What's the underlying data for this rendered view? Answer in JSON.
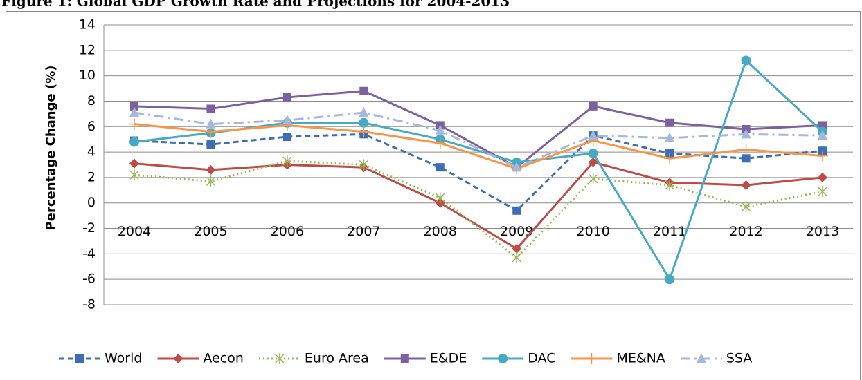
{
  "chart_data": {
    "type": "line",
    "title": "Figure 1: Global GDP Growth Rate and Projections for 2004-2013",
    "y_label": "Percentage Change (%)",
    "categories": [
      "2004",
      "2005",
      "2006",
      "2007",
      "2008",
      "2009",
      "2010",
      "2011",
      "2012",
      "2013"
    ],
    "series": [
      {
        "name": "World",
        "color": "#3d6db5",
        "dash": "dashed",
        "marker": "square",
        "values": [
          4.9,
          4.6,
          5.2,
          5.4,
          2.8,
          -0.6,
          5.3,
          3.9,
          3.5,
          4.1
        ]
      },
      {
        "name": "Aecon",
        "color": "#be4b48",
        "dash": "solid",
        "marker": "diamond",
        "values": [
          3.1,
          2.6,
          3.0,
          2.8,
          0.0,
          -3.6,
          3.2,
          1.6,
          1.4,
          2.0
        ]
      },
      {
        "name": "Euro Area",
        "color": "#98b954",
        "dash": "dotted",
        "marker": "star",
        "values": [
          2.2,
          1.7,
          3.3,
          3.0,
          0.4,
          -4.3,
          1.9,
          1.4,
          -0.3,
          0.9
        ]
      },
      {
        "name": "E&DE",
        "color": "#7d60a0",
        "dash": "solid",
        "marker": "square",
        "values": [
          7.6,
          7.4,
          8.3,
          8.8,
          6.1,
          2.8,
          7.6,
          6.3,
          5.8,
          6.1
        ]
      },
      {
        "name": "DAC",
        "color": "#46aac5",
        "dash": "solid",
        "marker": "circle",
        "values": [
          4.8,
          5.5,
          6.3,
          6.3,
          5.0,
          3.2,
          3.9,
          -6.0,
          11.2,
          5.6
        ]
      },
      {
        "name": "ME&NA",
        "color": "#f79646",
        "dash": "solid",
        "marker": "plus",
        "values": [
          6.2,
          5.6,
          6.1,
          5.6,
          4.7,
          2.7,
          4.9,
          3.5,
          4.2,
          3.7
        ]
      },
      {
        "name": "SSA",
        "color": "#a5b8dc",
        "dash": "dashdot",
        "marker": "triangle",
        "values": [
          7.1,
          6.2,
          6.5,
          7.1,
          5.7,
          2.8,
          5.3,
          5.1,
          5.4,
          5.3
        ]
      }
    ],
    "ylim": [
      -8,
      14
    ],
    "yticks": [
      -8,
      -6,
      -4,
      -2,
      0,
      2,
      4,
      6,
      8,
      10,
      12,
      14
    ],
    "grid": true,
    "legend": "bottom"
  }
}
